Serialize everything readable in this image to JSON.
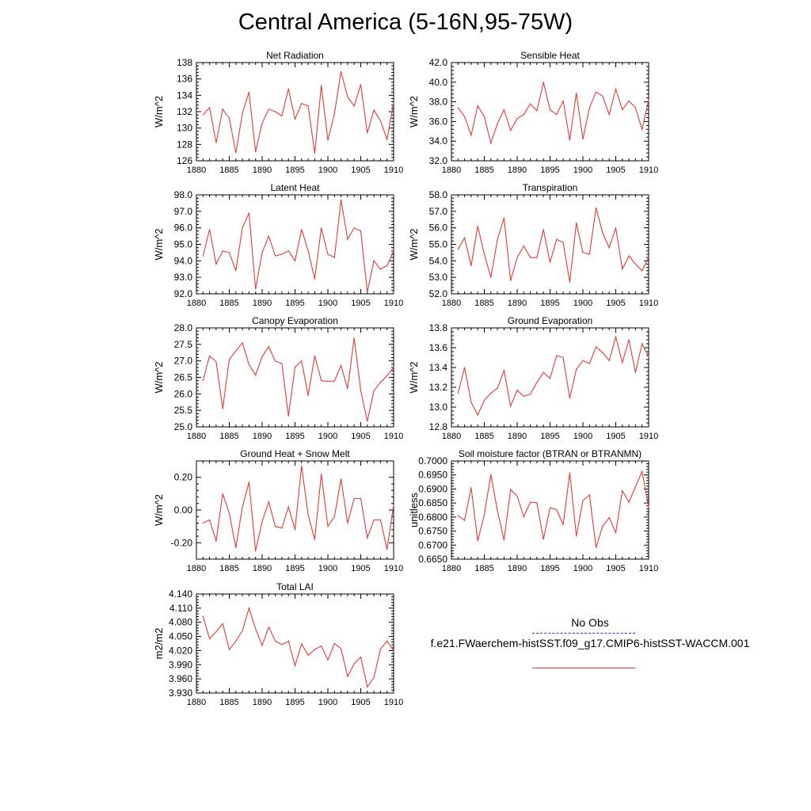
{
  "title": "Central America (5-16N,95-75W)",
  "legend": {
    "obs_label": "No Obs",
    "obs_color": "#2b2bd0",
    "model_label": "f.e21.FWaerchem-histSST.f09_g17.CMIP6-histSST-WACCM.001",
    "model_color": "#e23b3b"
  },
  "chart_data": [
    {
      "type": "line",
      "title": "Net Radiation",
      "ylabel": "W/m^2",
      "xlim": [
        1880,
        1910
      ],
      "xticks": [
        1880,
        1885,
        1890,
        1895,
        1900,
        1905,
        1910
      ],
      "xtick_labels": [
        "1880",
        "1885",
        "1890",
        "1895",
        "1900",
        "1905",
        "1910"
      ],
      "ylim": [
        126,
        138
      ],
      "yticks": [
        126,
        128,
        130,
        132,
        134,
        136,
        138
      ],
      "ytick_labels": [
        "126",
        "128",
        "130",
        "132",
        "134",
        "136",
        "138"
      ],
      "x": [
        1881,
        1882,
        1883,
        1884,
        1885,
        1886,
        1887,
        1888,
        1889,
        1890,
        1891,
        1892,
        1893,
        1894,
        1895,
        1896,
        1897,
        1898,
        1899,
        1900,
        1901,
        1902,
        1903,
        1904,
        1905,
        1906,
        1907,
        1908,
        1909,
        1910
      ],
      "values": [
        131.6,
        132.5,
        128.2,
        132.3,
        131.2,
        127.0,
        131.8,
        134.4,
        127.1,
        130.6,
        132.3,
        132.0,
        131.5,
        134.8,
        131.1,
        133.0,
        132.7,
        126.9,
        135.2,
        128.5,
        131.8,
        136.9,
        133.8,
        132.7,
        135.3,
        129.4,
        132.2,
        130.9,
        128.6,
        133.1
      ]
    },
    {
      "type": "line",
      "title": "Sensible Heat",
      "ylabel": "W/m^2",
      "xlim": [
        1880,
        1910
      ],
      "xticks": [
        1880,
        1885,
        1890,
        1895,
        1900,
        1905,
        1910
      ],
      "xtick_labels": [
        "1880",
        "1885",
        "1890",
        "1895",
        "1900",
        "1905",
        "1910"
      ],
      "ylim": [
        32,
        42
      ],
      "yticks": [
        32,
        34,
        36,
        38,
        40,
        42
      ],
      "ytick_labels": [
        "32.0",
        "34.0",
        "36.0",
        "38.0",
        "40.0",
        "42.0"
      ],
      "x": [
        1881,
        1882,
        1883,
        1884,
        1885,
        1886,
        1887,
        1888,
        1889,
        1890,
        1891,
        1892,
        1893,
        1894,
        1895,
        1896,
        1897,
        1898,
        1899,
        1900,
        1901,
        1902,
        1903,
        1904,
        1905,
        1906,
        1907,
        1908,
        1909,
        1910
      ],
      "values": [
        37.4,
        36.5,
        34.6,
        37.6,
        36.5,
        33.8,
        35.8,
        37.2,
        35.1,
        36.3,
        36.7,
        37.8,
        37.1,
        40.0,
        37.2,
        36.7,
        38.1,
        34.1,
        38.9,
        34.2,
        37.4,
        39.0,
        38.6,
        36.7,
        39.3,
        37.2,
        38.1,
        37.4,
        35.2,
        38.2
      ]
    },
    {
      "type": "line",
      "title": "Latent Heat",
      "ylabel": "W/m^2",
      "xlim": [
        1880,
        1910
      ],
      "xticks": [
        1880,
        1885,
        1890,
        1895,
        1900,
        1905,
        1910
      ],
      "xtick_labels": [
        "1880",
        "1885",
        "1890",
        "1895",
        "1900",
        "1905",
        "1910"
      ],
      "ylim": [
        92,
        98
      ],
      "yticks": [
        92,
        93,
        94,
        95,
        96,
        97,
        98
      ],
      "ytick_labels": [
        "92.0",
        "93.0",
        "94.0",
        "95.0",
        "96.0",
        "97.0",
        "98.0"
      ],
      "x": [
        1881,
        1882,
        1883,
        1884,
        1885,
        1886,
        1887,
        1888,
        1889,
        1890,
        1891,
        1892,
        1893,
        1894,
        1895,
        1896,
        1897,
        1898,
        1899,
        1900,
        1901,
        1902,
        1903,
        1904,
        1905,
        1906,
        1907,
        1908,
        1909,
        1910
      ],
      "values": [
        94.3,
        95.9,
        93.8,
        94.6,
        94.5,
        93.4,
        96.0,
        96.9,
        92.3,
        94.5,
        95.5,
        94.3,
        94.4,
        94.6,
        94.0,
        95.9,
        94.6,
        92.9,
        96.0,
        94.4,
        94.2,
        97.7,
        95.3,
        96.0,
        95.8,
        92.1,
        94.0,
        93.5,
        93.7,
        94.6
      ]
    },
    {
      "type": "line",
      "title": "Transpiration",
      "ylabel": "W/m^2",
      "xlim": [
        1880,
        1910
      ],
      "xticks": [
        1880,
        1885,
        1890,
        1895,
        1900,
        1905,
        1910
      ],
      "xtick_labels": [
        "1880",
        "1885",
        "1890",
        "1895",
        "1900",
        "1905",
        "1910"
      ],
      "ylim": [
        52,
        58
      ],
      "yticks": [
        52,
        53,
        54,
        55,
        56,
        57,
        58
      ],
      "ytick_labels": [
        "52.0",
        "53.0",
        "54.0",
        "55.0",
        "56.0",
        "57.0",
        "58.0"
      ],
      "x": [
        1881,
        1882,
        1883,
        1884,
        1885,
        1886,
        1887,
        1888,
        1889,
        1890,
        1891,
        1892,
        1893,
        1894,
        1895,
        1896,
        1897,
        1898,
        1899,
        1900,
        1901,
        1902,
        1903,
        1904,
        1905,
        1906,
        1907,
        1908,
        1909,
        1910
      ],
      "values": [
        54.7,
        55.4,
        53.7,
        56.1,
        54.4,
        53.0,
        55.3,
        56.6,
        52.8,
        54.2,
        54.9,
        54.2,
        54.2,
        55.9,
        53.9,
        55.3,
        55.1,
        52.7,
        56.3,
        54.5,
        54.4,
        57.2,
        55.7,
        54.8,
        56.0,
        53.5,
        54.3,
        53.8,
        53.4,
        54.2
      ]
    },
    {
      "type": "line",
      "title": "Canopy Evaporation",
      "ylabel": "W/m^2",
      "xlim": [
        1880,
        1910
      ],
      "xticks": [
        1880,
        1885,
        1890,
        1895,
        1900,
        1905,
        1910
      ],
      "xtick_labels": [
        "1880",
        "1885",
        "1890",
        "1895",
        "1900",
        "1905",
        "1910"
      ],
      "ylim": [
        25,
        28
      ],
      "yticks": [
        25,
        25.5,
        26,
        26.5,
        27,
        27.5,
        28
      ],
      "ytick_labels": [
        "25.0",
        "25.5",
        "26.0",
        "26.5",
        "27.0",
        "27.5",
        "28.0"
      ],
      "x": [
        1881,
        1882,
        1883,
        1884,
        1885,
        1886,
        1887,
        1888,
        1889,
        1890,
        1891,
        1892,
        1893,
        1894,
        1895,
        1896,
        1897,
        1898,
        1899,
        1900,
        1901,
        1902,
        1903,
        1904,
        1905,
        1906,
        1907,
        1908,
        1909,
        1910
      ],
      "values": [
        26.4,
        27.15,
        26.97,
        25.55,
        27.05,
        27.3,
        27.55,
        26.88,
        26.57,
        27.13,
        27.43,
        26.99,
        26.92,
        25.33,
        26.81,
        27.0,
        25.95,
        27.15,
        26.4,
        26.38,
        26.39,
        26.86,
        26.16,
        27.7,
        26.1,
        25.17,
        26.1,
        26.35,
        26.55,
        26.8
      ]
    },
    {
      "type": "line",
      "title": "Ground Evaporation",
      "ylabel": "W/m^2",
      "xlim": [
        1880,
        1910
      ],
      "xticks": [
        1880,
        1885,
        1890,
        1895,
        1900,
        1905,
        1910
      ],
      "xtick_labels": [
        "1880",
        "1885",
        "1890",
        "1895",
        "1900",
        "1905",
        "1910"
      ],
      "ylim": [
        12.8,
        13.8
      ],
      "yticks": [
        12.8,
        13.0,
        13.2,
        13.4,
        13.6,
        13.8
      ],
      "ytick_labels": [
        "12.8",
        "13.0",
        "13.2",
        "13.4",
        "13.6",
        "13.8"
      ],
      "x": [
        1881,
        1882,
        1883,
        1884,
        1885,
        1886,
        1887,
        1888,
        1889,
        1890,
        1891,
        1892,
        1893,
        1894,
        1895,
        1896,
        1897,
        1898,
        1899,
        1900,
        1901,
        1902,
        1903,
        1904,
        1905,
        1906,
        1907,
        1908,
        1909,
        1910
      ],
      "values": [
        13.14,
        13.4,
        13.05,
        12.92,
        13.07,
        13.14,
        13.19,
        13.37,
        13.01,
        13.17,
        13.11,
        13.13,
        13.25,
        13.35,
        13.29,
        13.52,
        13.5,
        13.09,
        13.38,
        13.47,
        13.44,
        13.61,
        13.55,
        13.47,
        13.71,
        13.45,
        13.68,
        13.35,
        13.64,
        13.51
      ]
    },
    {
      "type": "line",
      "title": "Ground Heat + Snow Melt",
      "ylabel": "W/m^2",
      "xlim": [
        1880,
        1910
      ],
      "xticks": [
        1880,
        1885,
        1890,
        1895,
        1900,
        1905,
        1910
      ],
      "xtick_labels": [
        "1880",
        "1885",
        "1890",
        "1895",
        "1900",
        "1905",
        "1910"
      ],
      "ylim": [
        -0.3,
        0.3
      ],
      "yticks": [
        -0.2,
        0.0,
        0.2
      ],
      "ytick_labels": [
        "-0.20",
        "0.00",
        "0.20"
      ],
      "x": [
        1881,
        1882,
        1883,
        1884,
        1885,
        1886,
        1887,
        1888,
        1889,
        1890,
        1891,
        1892,
        1893,
        1894,
        1895,
        1896,
        1897,
        1898,
        1899,
        1900,
        1901,
        1902,
        1903,
        1904,
        1905,
        1906,
        1907,
        1908,
        1909,
        1910
      ],
      "values": [
        -0.08,
        -0.06,
        -0.19,
        0.1,
        -0.02,
        -0.23,
        0.02,
        0.17,
        -0.25,
        -0.07,
        0.05,
        -0.1,
        -0.11,
        0.02,
        -0.12,
        0.27,
        -0.03,
        -0.18,
        0.22,
        -0.1,
        -0.04,
        0.19,
        -0.08,
        0.07,
        0.07,
        -0.17,
        -0.06,
        -0.06,
        -0.24,
        0.03
      ]
    },
    {
      "type": "line",
      "title": "Soil moisture factor (BTRAN or BTRANMN)",
      "ylabel": "unitless",
      "xlim": [
        1880,
        1910
      ],
      "xticks": [
        1880,
        1885,
        1890,
        1895,
        1900,
        1905,
        1910
      ],
      "xtick_labels": [
        "1880",
        "1885",
        "1890",
        "1895",
        "1900",
        "1905",
        "1910"
      ],
      "ylim": [
        0.665,
        0.7
      ],
      "yticks": [
        0.665,
        0.67,
        0.675,
        0.68,
        0.685,
        0.69,
        0.695,
        0.7
      ],
      "ytick_labels": [
        "0.6650",
        "0.6700",
        "0.6750",
        "0.6800",
        "0.6850",
        "0.6900",
        "0.6950",
        "0.7000"
      ],
      "x": [
        1881,
        1882,
        1883,
        1884,
        1885,
        1886,
        1887,
        1888,
        1889,
        1890,
        1891,
        1892,
        1893,
        1894,
        1895,
        1896,
        1897,
        1898,
        1899,
        1900,
        1901,
        1902,
        1903,
        1904,
        1905,
        1906,
        1907,
        1908,
        1909,
        1910
      ],
      "values": [
        0.6805,
        0.6788,
        0.6905,
        0.6715,
        0.6808,
        0.6952,
        0.6822,
        0.6718,
        0.6898,
        0.6875,
        0.6801,
        0.6853,
        0.6851,
        0.6721,
        0.6833,
        0.6826,
        0.6773,
        0.6958,
        0.6732,
        0.6859,
        0.6879,
        0.6691,
        0.6767,
        0.6798,
        0.6744,
        0.6894,
        0.6853,
        0.6908,
        0.6963,
        0.6835
      ]
    },
    {
      "type": "line",
      "title": "Total LAI",
      "ylabel": "m2/m2",
      "xlim": [
        1880,
        1910
      ],
      "xticks": [
        1880,
        1885,
        1890,
        1895,
        1900,
        1905,
        1910
      ],
      "xtick_labels": [
        "1880",
        "1885",
        "1890",
        "1895",
        "1900",
        "1905",
        "1910"
      ],
      "ylim": [
        3.93,
        4.14
      ],
      "yticks": [
        3.93,
        3.96,
        3.99,
        4.02,
        4.05,
        4.08,
        4.11,
        4.14
      ],
      "ytick_labels": [
        "3.930",
        "3.960",
        "3.990",
        "4.020",
        "4.050",
        "4.080",
        "4.110",
        "4.140"
      ],
      "x": [
        1881,
        1882,
        1883,
        1884,
        1885,
        1886,
        1887,
        1888,
        1889,
        1890,
        1891,
        1892,
        1893,
        1894,
        1895,
        1896,
        1897,
        1898,
        1899,
        1900,
        1901,
        1902,
        1903,
        1904,
        1905,
        1906,
        1907,
        1908,
        1909,
        1910
      ],
      "values": [
        4.093,
        4.045,
        4.06,
        4.077,
        4.022,
        4.04,
        4.062,
        4.11,
        4.066,
        4.031,
        4.07,
        4.04,
        4.033,
        4.04,
        3.988,
        4.034,
        4.01,
        4.022,
        4.03,
        4.0,
        4.035,
        4.024,
        3.965,
        3.992,
        4.006,
        3.943,
        3.963,
        4.023,
        4.04,
        4.02
      ]
    }
  ]
}
